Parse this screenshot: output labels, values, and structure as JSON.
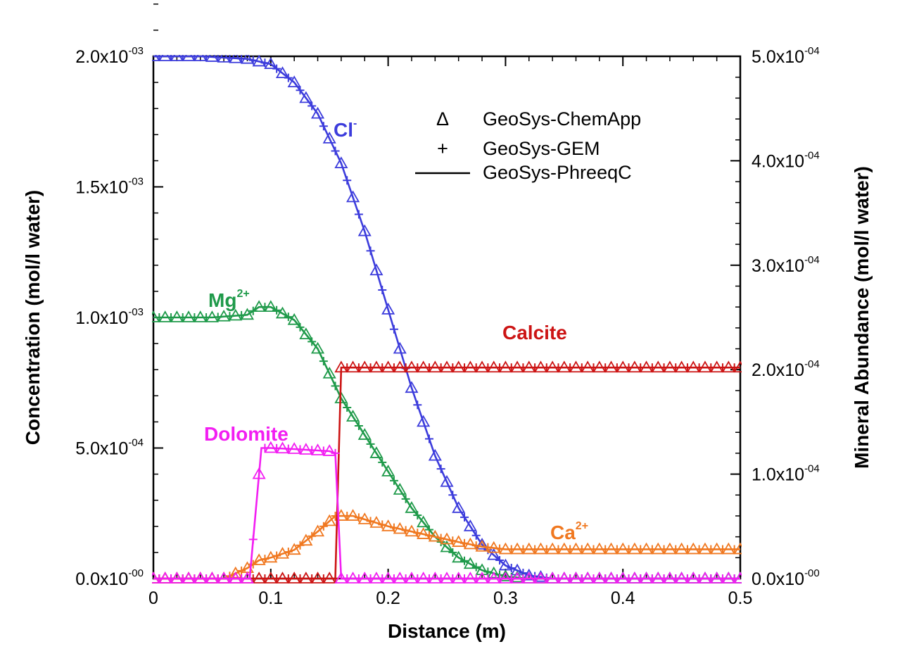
{
  "chart_data": {
    "type": "line",
    "xlabel": "Distance (m)",
    "ylabel_left": "Concentration (mol/l water)",
    "ylabel_right": "Mineral Abundance (mol/l water)",
    "xlim": [
      0,
      0.5
    ],
    "ylim_left": [
      0,
      0.002
    ],
    "ylim_right": [
      0,
      0.0005
    ],
    "x_ticks": [
      "0",
      "0.1",
      "0.2",
      "0.3",
      "0.4",
      "0.5"
    ],
    "y_left_ticks": [
      {
        "mantissa": "0.0x10",
        "exp": "-00"
      },
      {
        "mantissa": "5.0x10",
        "exp": "-04"
      },
      {
        "mantissa": "1.0x10",
        "exp": "-03"
      },
      {
        "mantissa": "1.5x10",
        "exp": "-03"
      },
      {
        "mantissa": "2.0x10",
        "exp": "-03"
      }
    ],
    "y_right_ticks": [
      {
        "mantissa": "0.0x10",
        "exp": "-00"
      },
      {
        "mantissa": "1.0x10",
        "exp": "-04"
      },
      {
        "mantissa": "2.0x10",
        "exp": "-04"
      },
      {
        "mantissa": "3.0x10",
        "exp": "-04"
      },
      {
        "mantissa": "4.0x10",
        "exp": "-04"
      },
      {
        "mantissa": "5.0x10",
        "exp": "-04"
      }
    ],
    "legend": [
      {
        "marker": "Δ",
        "label": "GeoSys-ChemApp"
      },
      {
        "marker": "+",
        "label": "GeoSys-GEM"
      },
      {
        "marker": "line",
        "label": "GeoSys-PhreeqC"
      }
    ],
    "series": [
      {
        "name": "Cl",
        "sup": "-",
        "color": "#3c3cdc",
        "axis": "left",
        "points": [
          [
            0,
            0.002
          ],
          [
            0.04,
            0.002
          ],
          [
            0.08,
            0.00199
          ],
          [
            0.1,
            0.00197
          ],
          [
            0.12,
            0.0019
          ],
          [
            0.14,
            0.00178
          ],
          [
            0.16,
            0.00159
          ],
          [
            0.18,
            0.00133
          ],
          [
            0.2,
            0.00103
          ],
          [
            0.22,
            0.00073
          ],
          [
            0.24,
            0.00047
          ],
          [
            0.26,
            0.00027
          ],
          [
            0.28,
            0.00013
          ],
          [
            0.3,
            5e-05
          ],
          [
            0.32,
            1.2e-05
          ],
          [
            0.34,
            0
          ],
          [
            0.5,
            0
          ]
        ]
      },
      {
        "name": "Mg",
        "sup": "2+",
        "color": "#1f9a4a",
        "axis": "left",
        "points": [
          [
            0,
            0.001
          ],
          [
            0.05,
            0.001
          ],
          [
            0.08,
            0.00101
          ],
          [
            0.09,
            0.00104
          ],
          [
            0.1,
            0.00104
          ],
          [
            0.12,
            0.00099
          ],
          [
            0.14,
            0.00088
          ],
          [
            0.16,
            0.00069
          ],
          [
            0.18,
            0.00055
          ],
          [
            0.2,
            0.00041
          ],
          [
            0.22,
            0.00027
          ],
          [
            0.24,
            0.00016
          ],
          [
            0.26,
            8e-05
          ],
          [
            0.28,
            3.2e-05
          ],
          [
            0.3,
            8e-06
          ],
          [
            0.32,
            0
          ],
          [
            0.5,
            0
          ]
        ]
      },
      {
        "name": "Ca",
        "sup": "2+",
        "color": "#f07820",
        "axis": "left",
        "points": [
          [
            0,
            0
          ],
          [
            0.06,
            0
          ],
          [
            0.08,
            4e-05
          ],
          [
            0.09,
            7e-05
          ],
          [
            0.1,
            8e-05
          ],
          [
            0.12,
            0.00011
          ],
          [
            0.14,
            0.00018
          ],
          [
            0.155,
            0.00024
          ],
          [
            0.17,
            0.00024
          ],
          [
            0.2,
            0.0002
          ],
          [
            0.22,
            0.00018
          ],
          [
            0.24,
            0.00016
          ],
          [
            0.26,
            0.00014
          ],
          [
            0.28,
            0.000122
          ],
          [
            0.3,
            0.000112
          ],
          [
            0.35,
            0.000112
          ],
          [
            0.5,
            0.000112
          ]
        ]
      },
      {
        "name": "Calcite",
        "sup": "",
        "color": "#cc1414",
        "axis": "right",
        "points": [
          [
            0,
            0
          ],
          [
            0.15,
            0
          ],
          [
            0.155,
            0
          ],
          [
            0.16,
            0.000202
          ],
          [
            0.2,
            0.000202
          ],
          [
            0.3,
            0.000202
          ],
          [
            0.4,
            0.000202
          ],
          [
            0.5,
            0.000202
          ]
        ]
      },
      {
        "name": "Dolomite",
        "sup": "",
        "color": "#f21ef2",
        "axis": "right",
        "points": [
          [
            0,
            0
          ],
          [
            0.082,
            0
          ],
          [
            0.092,
            0.000125
          ],
          [
            0.1,
            0.000125
          ],
          [
            0.12,
            0.000124
          ],
          [
            0.15,
            0.000122
          ],
          [
            0.155,
            0.00012
          ],
          [
            0.16,
            0
          ],
          [
            0.5,
            0
          ]
        ]
      }
    ]
  }
}
